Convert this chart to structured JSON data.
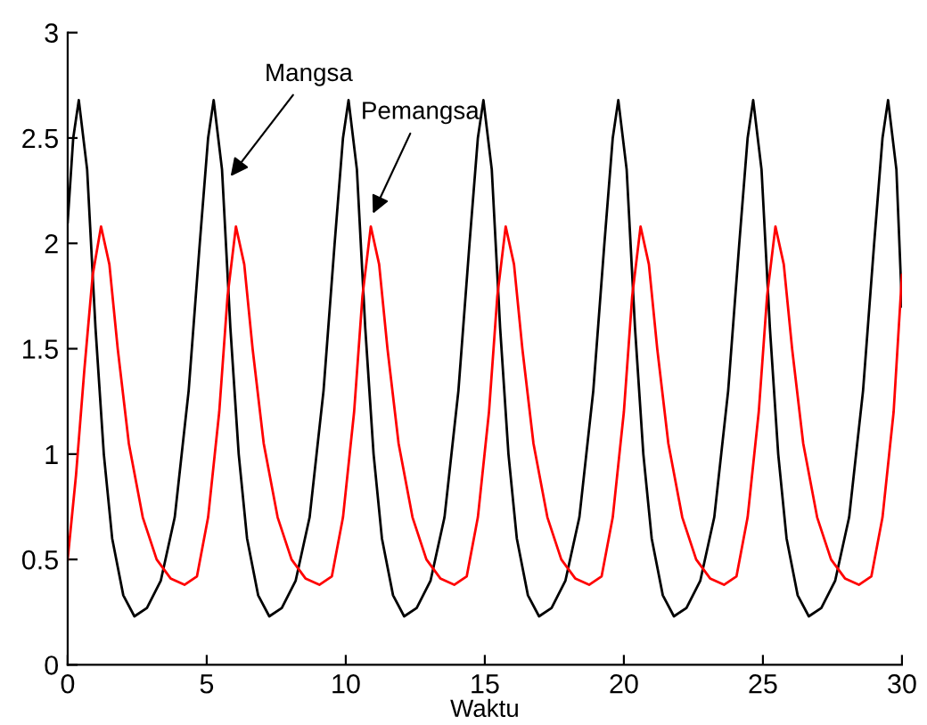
{
  "chart_data": {
    "type": "line",
    "xlabel": "Waktu",
    "xlim": [
      0,
      30
    ],
    "xticks": [
      0,
      5,
      10,
      15,
      20,
      25,
      30
    ],
    "ylim": [
      0,
      3
    ],
    "yticks": [
      0,
      0.5,
      1,
      1.5,
      2,
      2.5,
      3
    ],
    "grid": false,
    "legend": false,
    "marker": "none",
    "line_style": "solid",
    "series": [
      {
        "color": "#000000",
        "x": [
          0,
          0.2,
          0.4,
          0.7,
          1.0,
          1.3,
          1.6,
          2.0,
          2.4,
          2.85,
          3.35,
          3.85,
          4.35,
          4.75,
          5.05,
          5.25,
          5.55,
          5.85,
          6.15,
          6.45,
          6.85,
          7.25,
          7.7,
          8.2,
          8.7,
          9.2,
          9.6,
          9.9,
          10.1,
          10.4,
          10.7,
          11.0,
          11.3,
          11.7,
          12.1,
          12.55,
          13.05,
          13.55,
          14.05,
          14.45,
          14.75,
          14.95,
          15.25,
          15.55,
          15.85,
          16.15,
          16.55,
          16.95,
          17.4,
          17.9,
          18.4,
          18.9,
          19.3,
          19.6,
          19.8,
          20.1,
          20.4,
          20.7,
          21.0,
          21.4,
          21.8,
          22.25,
          22.75,
          23.25,
          23.75,
          24.15,
          24.45,
          24.65,
          24.95,
          25.25,
          25.55,
          25.85,
          26.25,
          26.65,
          27.1,
          27.6,
          28.1,
          28.6,
          29.0,
          29.3,
          29.5,
          29.8,
          30
        ],
        "values": [
          2.1,
          2.5,
          2.68,
          2.35,
          1.6,
          1.0,
          0.6,
          0.33,
          0.23,
          0.27,
          0.4,
          0.7,
          1.3,
          2.0,
          2.5,
          2.68,
          2.35,
          1.6,
          1.0,
          0.6,
          0.33,
          0.23,
          0.27,
          0.4,
          0.7,
          1.3,
          2.0,
          2.5,
          2.68,
          2.35,
          1.6,
          1.0,
          0.6,
          0.33,
          0.23,
          0.27,
          0.4,
          0.7,
          1.3,
          2.0,
          2.5,
          2.68,
          2.35,
          1.6,
          1.0,
          0.6,
          0.33,
          0.23,
          0.27,
          0.4,
          0.7,
          1.3,
          2.0,
          2.5,
          2.68,
          2.35,
          1.6,
          1.0,
          0.6,
          0.33,
          0.23,
          0.27,
          0.4,
          0.7,
          1.3,
          2.0,
          2.5,
          2.68,
          2.35,
          1.6,
          1.0,
          0.6,
          0.33,
          0.23,
          0.27,
          0.4,
          0.7,
          1.3,
          2.0,
          2.5,
          2.68,
          2.35,
          1.7
        ]
      },
      {
        "color": "#ff0000",
        "x": [
          0,
          0.3,
          0.6,
          0.9,
          1.2,
          1.5,
          1.8,
          2.2,
          2.7,
          3.2,
          3.7,
          4.2,
          4.65,
          5.05,
          5.45,
          5.75,
          6.05,
          6.35,
          6.65,
          7.05,
          7.55,
          8.05,
          8.55,
          9.05,
          9.5,
          9.9,
          10.3,
          10.6,
          10.9,
          11.2,
          11.5,
          11.9,
          12.4,
          12.9,
          13.4,
          13.9,
          14.35,
          14.75,
          15.15,
          15.45,
          15.75,
          16.05,
          16.35,
          16.75,
          17.25,
          17.75,
          18.25,
          18.75,
          19.2,
          19.6,
          20.0,
          20.3,
          20.6,
          20.9,
          21.2,
          21.6,
          22.1,
          22.6,
          23.1,
          23.6,
          24.05,
          24.45,
          24.85,
          25.15,
          25.45,
          25.75,
          26.05,
          26.45,
          26.95,
          27.45,
          27.95,
          28.45,
          28.9,
          29.3,
          29.7,
          30
        ],
        "values": [
          0.5,
          0.9,
          1.4,
          1.85,
          2.08,
          1.9,
          1.5,
          1.05,
          0.7,
          0.5,
          0.41,
          0.38,
          0.42,
          0.7,
          1.2,
          1.75,
          2.08,
          1.9,
          1.5,
          1.05,
          0.7,
          0.5,
          0.41,
          0.38,
          0.42,
          0.7,
          1.2,
          1.75,
          2.08,
          1.9,
          1.5,
          1.05,
          0.7,
          0.5,
          0.41,
          0.38,
          0.42,
          0.7,
          1.2,
          1.75,
          2.08,
          1.9,
          1.5,
          1.05,
          0.7,
          0.5,
          0.41,
          0.38,
          0.42,
          0.7,
          1.2,
          1.75,
          2.08,
          1.9,
          1.5,
          1.05,
          0.7,
          0.5,
          0.41,
          0.38,
          0.42,
          0.7,
          1.2,
          1.75,
          2.08,
          1.9,
          1.5,
          1.05,
          0.7,
          0.5,
          0.41,
          0.38,
          0.42,
          0.7,
          1.2,
          1.85
        ]
      }
    ],
    "annotations": [
      {
        "text": "Mangsa",
        "x": 5.75,
        "y": 2.3
      },
      {
        "text": "Pemangsa",
        "x": 10.9,
        "y": 2.12
      }
    ]
  }
}
